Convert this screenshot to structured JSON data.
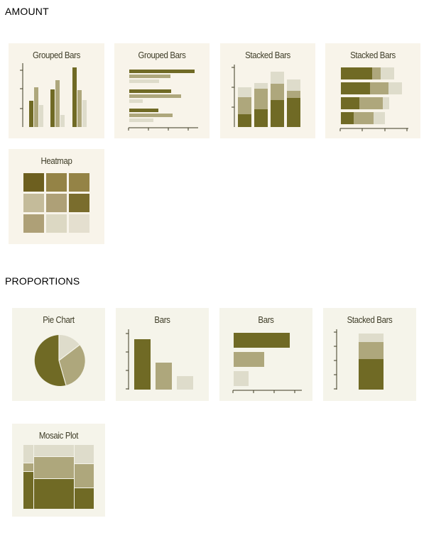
{
  "sections": {
    "amount": "AMOUNT",
    "proportions": "PROPORTIONS"
  },
  "cards": {
    "grouped_bars_v": "Grouped Bars",
    "grouped_bars_h": "Grouped Bars",
    "stacked_bars_v": "Stacked Bars",
    "stacked_bars_h": "Stacked Bars",
    "heatmap": "Heatmap",
    "pie_chart": "Pie Chart",
    "bars_v": "Bars",
    "bars_h": "Bars",
    "stacked_bars_prop": "Stacked Bars",
    "mosaic_plot": "Mosaic Plot"
  },
  "colors": {
    "card_bg_amount": "#f8f4ea",
    "card_bg_prop": "#f5f4ea",
    "dark": "#706a25",
    "mid": "#aea77c",
    "light": "#dedccb",
    "axis": "#3d3a22"
  }
}
